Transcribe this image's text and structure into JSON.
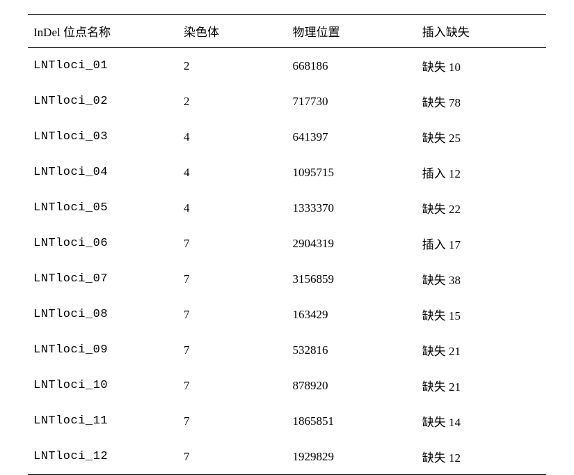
{
  "table": {
    "columns": [
      {
        "label": "InDel 位点名称",
        "width": "29%",
        "header_class": "mono"
      },
      {
        "label": "染色体",
        "width": "21%",
        "header_class": ""
      },
      {
        "label": "物理位置",
        "width": "25%",
        "header_class": ""
      },
      {
        "label": "插入缺失",
        "width": "25%",
        "header_class": ""
      }
    ],
    "rows": [
      {
        "locus": "LNTloci_01",
        "chromosome": "2",
        "position": "668186",
        "indel": "缺失 10"
      },
      {
        "locus": "LNTloci_02",
        "chromosome": "2",
        "position": "717730",
        "indel": "缺失 78"
      },
      {
        "locus": "LNTloci_03",
        "chromosome": "4",
        "position": "641397",
        "indel": "缺失 25"
      },
      {
        "locus": "LNTloci_04",
        "chromosome": "4",
        "position": "1095715",
        "indel": "插入 12"
      },
      {
        "locus": "LNTloci_05",
        "chromosome": "4",
        "position": "1333370",
        "indel": "缺失 22"
      },
      {
        "locus": "LNTloci_06",
        "chromosome": "7",
        "position": "2904319",
        "indel": "插入 17"
      },
      {
        "locus": "LNTloci_07",
        "chromosome": "7",
        "position": "3156859",
        "indel": "缺失 38"
      },
      {
        "locus": "LNTloci_08",
        "chromosome": "7",
        "position": "163429",
        "indel": "缺失 15"
      },
      {
        "locus": "LNTloci_09",
        "chromosome": "7",
        "position": "532816",
        "indel": "缺失 21"
      },
      {
        "locus": "LNTloci_10",
        "chromosome": "7",
        "position": "878920",
        "indel": "缺失 21"
      },
      {
        "locus": "LNTloci_11",
        "chromosome": "7",
        "position": "1865851",
        "indel": "缺失 14"
      },
      {
        "locus": "LNTloci_12",
        "chromosome": "7",
        "position": "1929829",
        "indel": "缺失 12"
      }
    ],
    "styling": {
      "border_color": "#000000",
      "top_border_width": 1.5,
      "header_bottom_border_width": 1,
      "bottom_border_width": 1.5,
      "background_color": "#ffffff",
      "text_color": "#000000",
      "header_fontsize": 17,
      "cell_fontsize": 17,
      "row_padding_vertical": 13,
      "mono_font": "Courier New"
    }
  }
}
